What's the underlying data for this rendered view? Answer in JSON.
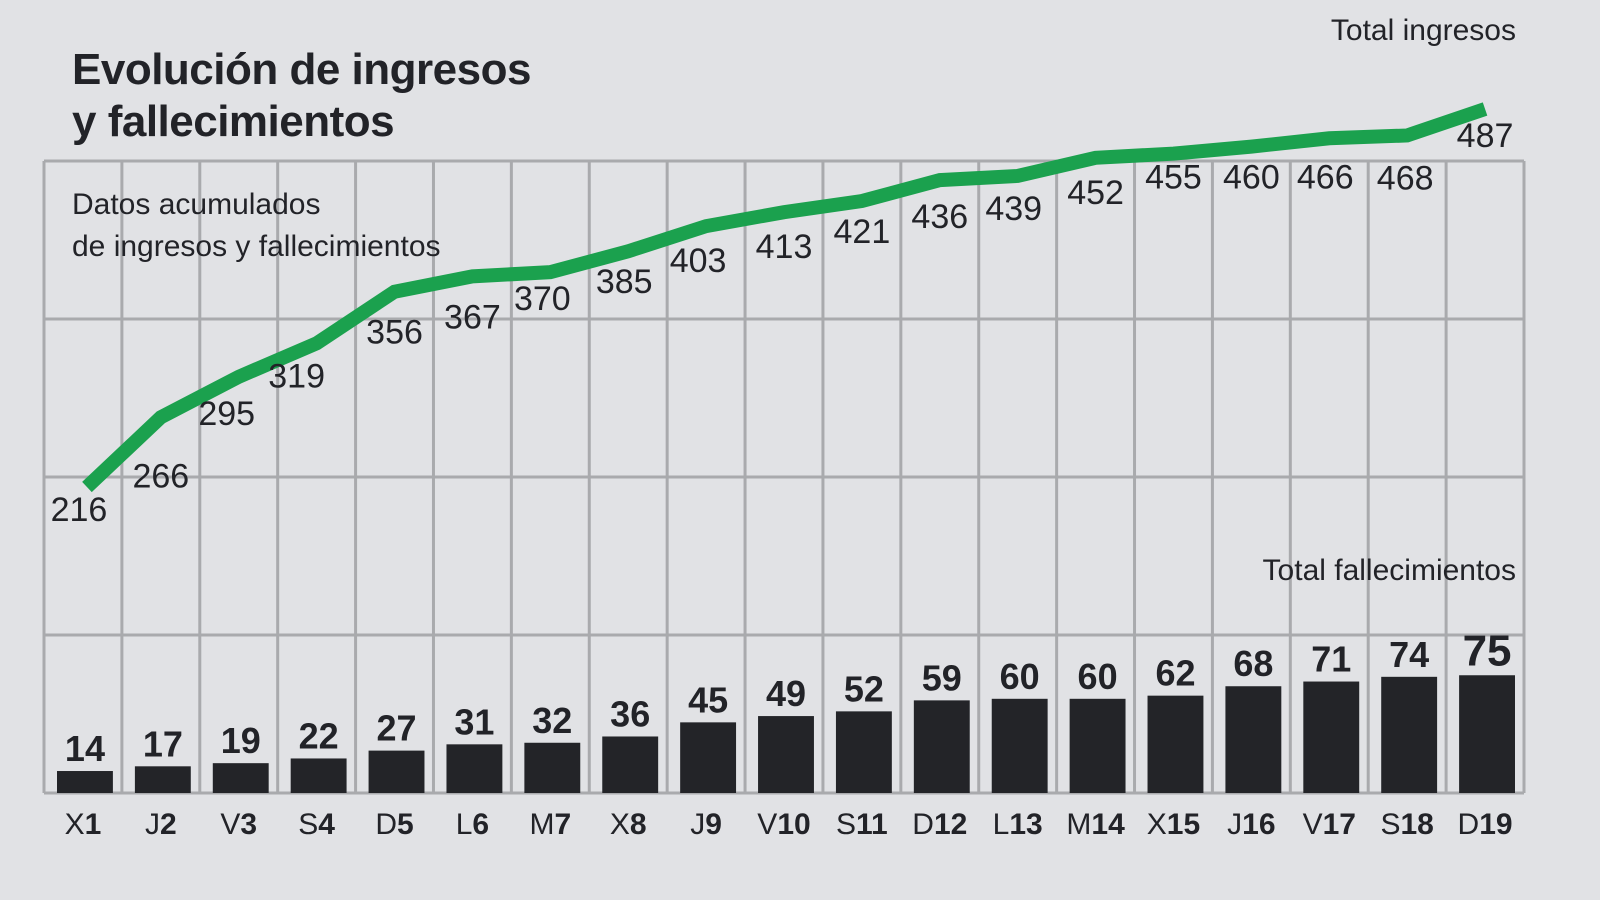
{
  "header": {
    "title_line1": "Evolución de ingresos",
    "title_line2": "y fallecimientos",
    "subtitle_line1": "Datos acumulados",
    "subtitle_line2": "de ingresos y fallecimientos"
  },
  "legend": {
    "ingresos": "Total ingresos",
    "fallecimientos": "Total fallecimientos"
  },
  "colors": {
    "background": "#e1e2e5",
    "grid": "#a9aaad",
    "line": "#1ba14e",
    "bar": "#232428",
    "text": "#222328"
  },
  "chart_data": {
    "type": "line+bar",
    "title": "Evolución de ingresos y fallecimientos",
    "subtitle": "Datos acumulados de ingresos y fallecimientos",
    "categories": [
      "X1",
      "J2",
      "V3",
      "S4",
      "D5",
      "L6",
      "M7",
      "X8",
      "J9",
      "V10",
      "S11",
      "D12",
      "L13",
      "M14",
      "X15",
      "J16",
      "V17",
      "S18",
      "D19"
    ],
    "category_parts": [
      [
        "X",
        "1"
      ],
      [
        "J",
        "2"
      ],
      [
        "V",
        "3"
      ],
      [
        "S",
        "4"
      ],
      [
        "D",
        "5"
      ],
      [
        "L",
        "6"
      ],
      [
        "M",
        "7"
      ],
      [
        "X",
        "8"
      ],
      [
        "J",
        "9"
      ],
      [
        "V",
        "10"
      ],
      [
        "S",
        "11"
      ],
      [
        "D",
        "12"
      ],
      [
        "L",
        "13"
      ],
      [
        "M",
        "14"
      ],
      [
        "X",
        "15"
      ],
      [
        "J",
        "16"
      ],
      [
        "V",
        "17"
      ],
      [
        "S",
        "18"
      ],
      [
        "D",
        "19"
      ]
    ],
    "series": [
      {
        "name": "Total ingresos",
        "type": "line",
        "color": "#1ba14e",
        "values": [
          216,
          266,
          295,
          319,
          356,
          367,
          370,
          385,
          403,
          413,
          421,
          436,
          439,
          452,
          455,
          460,
          466,
          468,
          487
        ]
      },
      {
        "name": "Total fallecimientos",
        "type": "bar",
        "color": "#232428",
        "values": [
          14,
          17,
          19,
          22,
          27,
          31,
          32,
          36,
          45,
          49,
          52,
          59,
          60,
          60,
          62,
          68,
          71,
          74,
          75
        ]
      }
    ],
    "xlabel": "",
    "ylabel": "",
    "grid": true,
    "legend_position": "inline-right"
  }
}
